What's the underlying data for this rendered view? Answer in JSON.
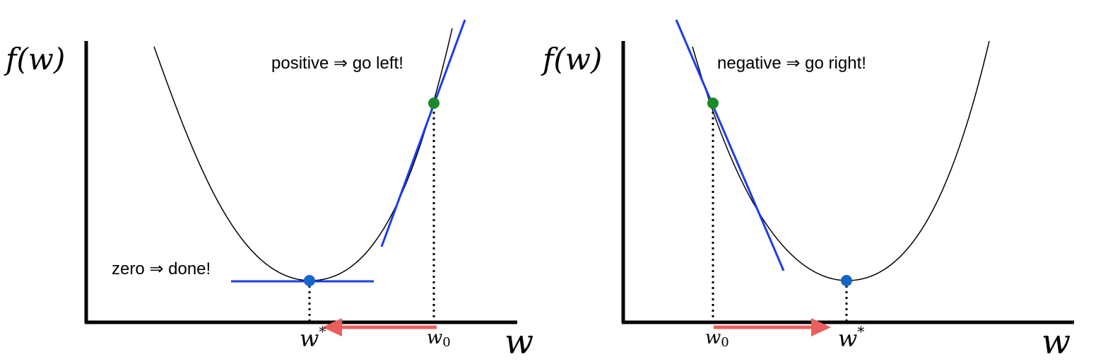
{
  "colors": {
    "curve": "#000000",
    "axis": "#000000",
    "tangent": "#1a3ee8",
    "start_point": "#1a8a2a",
    "min_point": "#1566c8",
    "arrow": "#ec5e5e"
  },
  "panels": [
    {
      "ylabel": "f(w)",
      "xlabel": "w",
      "annotation_top": "positive ⇒ go left!",
      "annotation_bottom": "zero ⇒ done!",
      "w_star": "w*",
      "w_star_base": "w",
      "w_star_sup": "*",
      "w0_base": "w",
      "w0_sub": "0",
      "arrow_direction": "left"
    },
    {
      "ylabel": "f(w)",
      "xlabel": "w",
      "annotation_top": "negative ⇒ go right!",
      "w_star": "w*",
      "w_star_base": "w",
      "w_star_sup": "*",
      "w0_base": "w",
      "w0_sub": "0",
      "arrow_direction": "right"
    }
  ]
}
